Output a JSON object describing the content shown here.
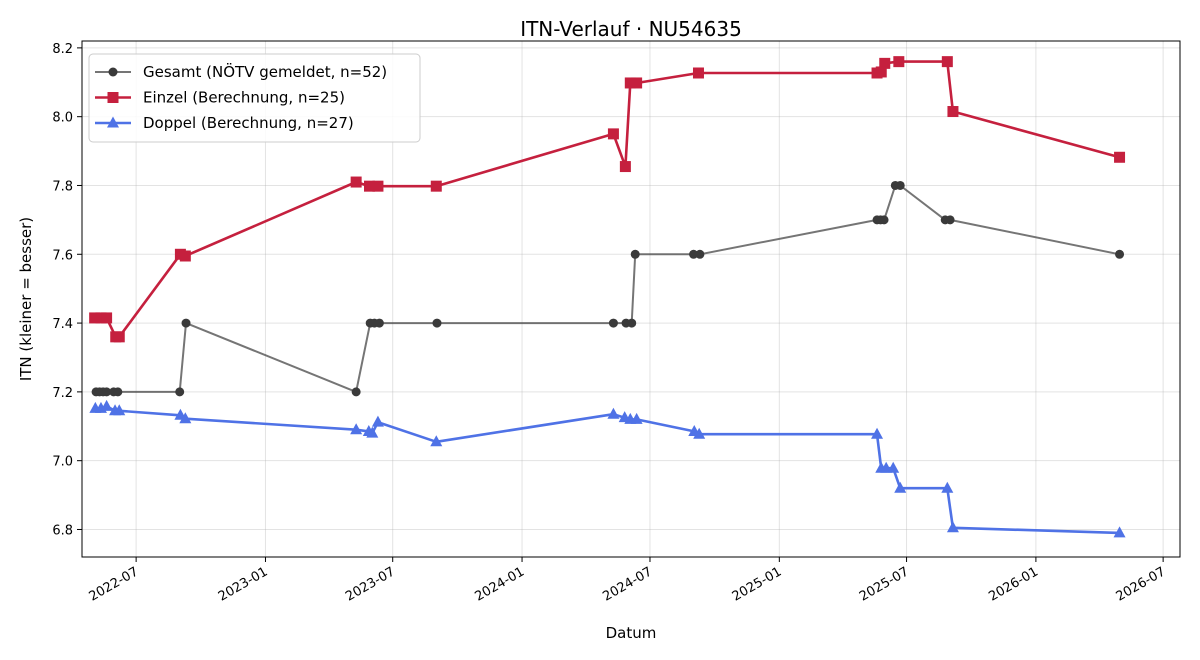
{
  "chart_data": {
    "type": "line",
    "title": "ITN-Verlauf · NU54635",
    "xlabel": "Datum",
    "ylabel": "ITN  (kleiner = besser)",
    "xlim": [
      "2022-04-15",
      "2026-07-25"
    ],
    "ylim": [
      6.72,
      8.22
    ],
    "x_ticks": [
      "2022-07-01",
      "2023-01-01",
      "2023-07-01",
      "2024-01-01",
      "2024-07-01",
      "2025-01-01",
      "2025-07-01",
      "2026-01-01",
      "2026-07-01"
    ],
    "x_tick_labels": [
      "2022-07",
      "2023-01",
      "2023-07",
      "2024-01",
      "2024-07",
      "2025-01",
      "2025-07",
      "2026-01",
      "2026-07"
    ],
    "y_ticks": [
      6.8,
      7.0,
      7.2,
      7.4,
      7.6,
      7.8,
      8.0,
      8.2
    ],
    "y_tick_labels": [
      "6.8",
      "7.0",
      "7.2",
      "7.4",
      "7.6",
      "7.8",
      "8.0",
      "8.2"
    ],
    "grid": true,
    "legend_position": "top-left",
    "series": [
      {
        "name": "Gesamt (NÖTV gemeldet, n=52)",
        "color": "#474747",
        "marker": "circle",
        "points": [
          [
            "2022-05-05",
            7.2
          ],
          [
            "2022-05-10",
            7.2
          ],
          [
            "2022-05-15",
            7.2
          ],
          [
            "2022-05-20",
            7.2
          ],
          [
            "2022-05-30",
            7.2
          ],
          [
            "2022-06-05",
            7.2
          ],
          [
            "2022-09-01",
            7.2
          ],
          [
            "2022-09-10",
            7.4
          ],
          [
            "2023-05-10",
            7.2
          ],
          [
            "2023-05-30",
            7.4
          ],
          [
            "2023-06-05",
            7.4
          ],
          [
            "2023-06-12",
            7.4
          ],
          [
            "2023-09-02",
            7.4
          ],
          [
            "2024-05-10",
            7.4
          ],
          [
            "2024-05-28",
            7.4
          ],
          [
            "2024-06-05",
            7.4
          ],
          [
            "2024-06-10",
            7.6
          ],
          [
            "2024-09-01",
            7.6
          ],
          [
            "2024-09-10",
            7.6
          ],
          [
            "2025-05-20",
            7.7
          ],
          [
            "2025-05-25",
            7.7
          ],
          [
            "2025-05-30",
            7.7
          ],
          [
            "2025-06-15",
            7.8
          ],
          [
            "2025-06-22",
            7.8
          ],
          [
            "2025-08-25",
            7.7
          ],
          [
            "2025-09-01",
            7.7
          ],
          [
            "2026-04-30",
            7.6
          ]
        ]
      },
      {
        "name": "Einzel (Berechnung, n=25)",
        "color": "#c5203e",
        "marker": "square",
        "points": [
          [
            "2022-05-03",
            7.415
          ],
          [
            "2022-05-12",
            7.415
          ],
          [
            "2022-05-20",
            7.415
          ],
          [
            "2022-06-02",
            7.36
          ],
          [
            "2022-06-07",
            7.36
          ],
          [
            "2022-09-02",
            7.6
          ],
          [
            "2022-09-09",
            7.595
          ],
          [
            "2023-05-10",
            7.81
          ],
          [
            "2023-05-29",
            7.798
          ],
          [
            "2023-06-10",
            7.798
          ],
          [
            "2023-09-01",
            7.798
          ],
          [
            "2024-05-10",
            7.95
          ],
          [
            "2024-05-27",
            7.855
          ],
          [
            "2024-06-03",
            8.098
          ],
          [
            "2024-06-12",
            8.098
          ],
          [
            "2024-09-08",
            8.127
          ],
          [
            "2025-05-20",
            8.127
          ],
          [
            "2025-05-26",
            8.13
          ],
          [
            "2025-05-31",
            8.155
          ],
          [
            "2025-06-20",
            8.16
          ],
          [
            "2025-08-28",
            8.16
          ],
          [
            "2025-09-05",
            8.015
          ],
          [
            "2026-04-30",
            7.882
          ]
        ]
      },
      {
        "name": "Doppel (Berechnung, n=27)",
        "color": "#4f72e6",
        "marker": "triangle",
        "points": [
          [
            "2022-05-04",
            7.152
          ],
          [
            "2022-05-12",
            7.152
          ],
          [
            "2022-05-20",
            7.158
          ],
          [
            "2022-06-01",
            7.145
          ],
          [
            "2022-06-07",
            7.145
          ],
          [
            "2022-09-02",
            7.132
          ],
          [
            "2022-09-09",
            7.122
          ],
          [
            "2023-05-10",
            7.09
          ],
          [
            "2023-05-28",
            7.085
          ],
          [
            "2023-06-02",
            7.08
          ],
          [
            "2023-06-10",
            7.112
          ],
          [
            "2023-09-01",
            7.055
          ],
          [
            "2024-05-10",
            7.135
          ],
          [
            "2024-05-26",
            7.125
          ],
          [
            "2024-06-03",
            7.12
          ],
          [
            "2024-06-12",
            7.12
          ],
          [
            "2024-09-02",
            7.085
          ],
          [
            "2024-09-09",
            7.077
          ],
          [
            "2025-05-20",
            7.077
          ],
          [
            "2025-05-26",
            6.978
          ],
          [
            "2025-06-02",
            6.978
          ],
          [
            "2025-06-12",
            6.978
          ],
          [
            "2025-06-22",
            6.92
          ],
          [
            "2025-08-28",
            6.92
          ],
          [
            "2025-09-05",
            6.805
          ],
          [
            "2026-04-30",
            6.79
          ]
        ]
      }
    ]
  }
}
